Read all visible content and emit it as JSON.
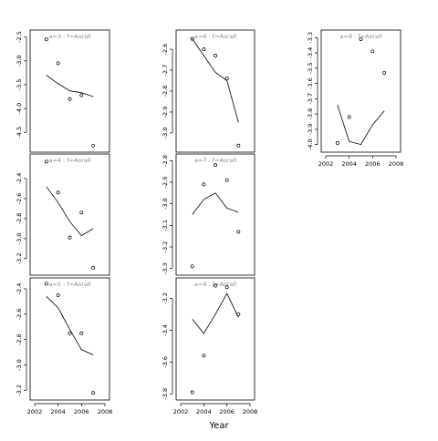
{
  "xlabel": "Year",
  "chart_data": [
    {
      "type": "scatter",
      "strip": "a=3 : f=Aorall",
      "xlim": [
        2002,
        2008
      ],
      "xticks": [],
      "ylim": [
        -4.82,
        -2.45
      ],
      "yticks": [
        -2.5,
        -3.0,
        -3.5,
        -4.0,
        -4.5
      ],
      "points": {
        "x": [
          2003,
          2004,
          2005,
          2006,
          2007
        ],
        "y": [
          -2.55,
          -3.05,
          -3.8,
          -3.72,
          -4.78
        ]
      },
      "fit": {
        "x": [
          2003,
          2004,
          2005,
          2006,
          2007
        ],
        "y": [
          -3.3,
          -3.48,
          -3.63,
          -3.67,
          -3.75
        ]
      }
    },
    {
      "type": "scatter",
      "strip": "a=6 : f=Aorall",
      "xlim": [
        2002,
        2008
      ],
      "xticks": [],
      "ylim": [
        -3.07,
        -2.53
      ],
      "yticks": [
        -2.6,
        -2.7,
        -2.8,
        -2.9,
        -3.0
      ],
      "points": {
        "x": [
          2003,
          2004,
          2005,
          2006,
          2007
        ],
        "y": [
          -2.55,
          -2.6,
          -2.63,
          -2.74,
          -3.06
        ]
      },
      "fit": {
        "x": [
          2003,
          2004,
          2005,
          2006,
          2007
        ],
        "y": [
          -2.55,
          -2.63,
          -2.71,
          -2.75,
          -2.95
        ]
      }
    },
    {
      "type": "scatter",
      "strip": "a=9 : f=Aorall",
      "xlim": [
        2002,
        2008
      ],
      "xticks": [
        2002,
        2004,
        2006,
        2008
      ],
      "ylim": [
        -4.02,
        -3.28
      ],
      "yticks": [
        -3.3,
        -3.4,
        -3.5,
        -3.6,
        -3.7,
        -3.8,
        -3.9,
        -4.0
      ],
      "points": {
        "x": [
          2003,
          2004,
          2005,
          2006,
          2007
        ],
        "y": [
          -3.99,
          -3.82,
          -3.31,
          -3.39,
          -3.53
        ]
      },
      "fit": {
        "x": [
          2003,
          2004,
          2005,
          2006,
          2007
        ],
        "y": [
          -3.74,
          -3.98,
          -4.0,
          -3.87,
          -3.78
        ]
      }
    },
    {
      "type": "scatter",
      "strip": "a=4 : f=Aorall",
      "xlim": [
        2002,
        2008
      ],
      "xticks": [],
      "ylim": [
        -3.32,
        -2.2
      ],
      "yticks": [
        -2.4,
        -2.6,
        -2.8,
        -3.0,
        -3.2
      ],
      "points": {
        "x": [
          2003,
          2004,
          2005,
          2006,
          2007
        ],
        "y": [
          -2.23,
          -2.54,
          -2.99,
          -2.74,
          -3.29
        ]
      },
      "fit": {
        "x": [
          2003,
          2004,
          2005,
          2006,
          2007
        ],
        "y": [
          -2.48,
          -2.64,
          -2.83,
          -2.97,
          -2.9
        ]
      }
    },
    {
      "type": "scatter",
      "strip": "a=7 : f=Aorall",
      "xlim": [
        2002,
        2008
      ],
      "xticks": [],
      "ylim": [
        -3.31,
        -2.79
      ],
      "yticks": [
        -2.8,
        -2.9,
        -3.0,
        -3.1,
        -3.2,
        -3.3
      ],
      "points": {
        "x": [
          2003,
          2004,
          2005,
          2006,
          2007
        ],
        "y": [
          -3.29,
          -2.91,
          -2.82,
          -2.89,
          -3.13
        ]
      },
      "fit": {
        "x": [
          2003,
          2004,
          2005,
          2006,
          2007
        ],
        "y": [
          -3.05,
          -2.98,
          -2.95,
          -3.02,
          -3.04
        ]
      }
    },
    {
      "type": "scatter",
      "strip": "a=5 : f=Aorall",
      "xlim": [
        2002,
        2008
      ],
      "xticks": [
        2002,
        2004,
        2006,
        2008
      ],
      "ylim": [
        -3.24,
        -2.35
      ],
      "yticks": [
        -2.4,
        -2.6,
        -2.8,
        -3.0,
        -3.2
      ],
      "points": {
        "x": [
          2003,
          2004,
          2005,
          2006,
          2007
        ],
        "y": [
          -2.36,
          -2.45,
          -2.75,
          -2.75,
          -3.22
        ]
      },
      "fit": {
        "x": [
          2003,
          2004,
          2005,
          2006,
          2007
        ],
        "y": [
          -2.46,
          -2.55,
          -2.72,
          -2.88,
          -2.92
        ]
      }
    },
    {
      "type": "scatter",
      "strip": "a=8 : f=Aorall",
      "xlim": [
        2002,
        2008
      ],
      "xticks": [
        2002,
        2004,
        2006,
        2008
      ],
      "ylim": [
        -3.81,
        -3.1
      ],
      "yticks": [
        -3.2,
        -3.4,
        -3.6,
        -3.8
      ],
      "points": {
        "x": [
          2003,
          2004,
          2005,
          2006,
          2007
        ],
        "y": [
          -3.79,
          -3.56,
          -3.12,
          -3.13,
          -3.3
        ]
      },
      "fit": {
        "x": [
          2003,
          2004,
          2005,
          2006,
          2007
        ],
        "y": [
          -3.33,
          -3.42,
          -3.3,
          -3.17,
          -3.32
        ]
      }
    }
  ]
}
